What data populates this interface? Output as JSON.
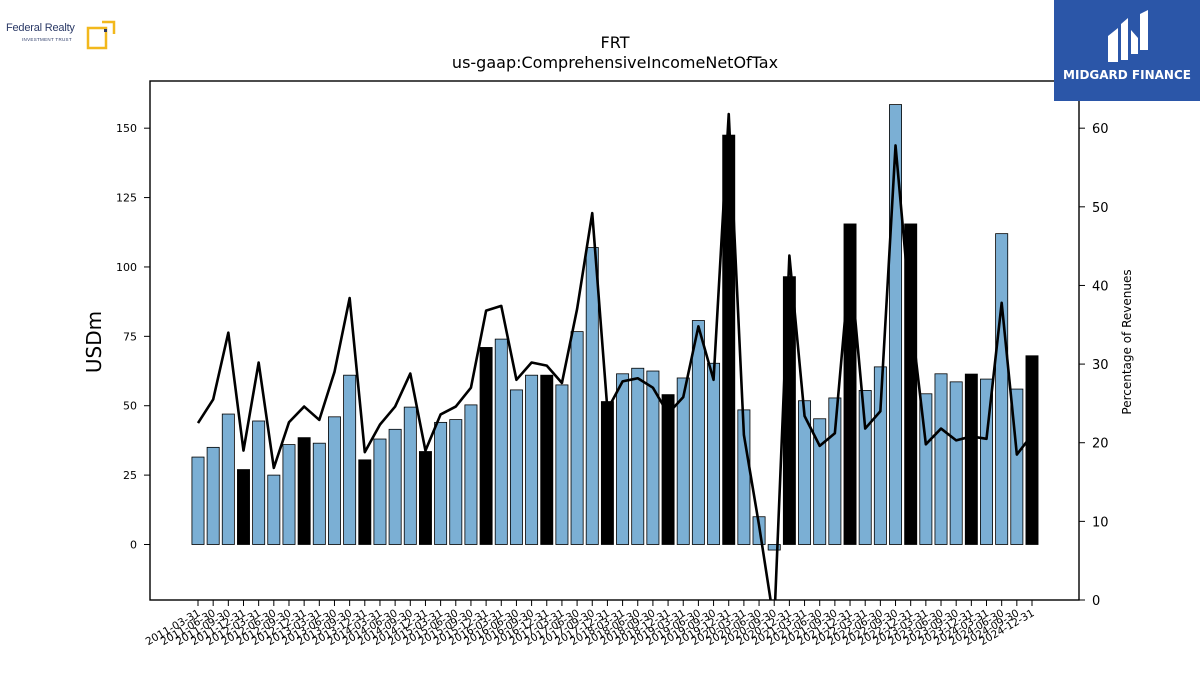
{
  "header": {
    "left_logo_text": "Federal Realty",
    "left_logo_sub": "INVESTMENT TRUST",
    "right_logo_text": "MIDGARD FINANCE"
  },
  "colors": {
    "bar_blue": "#7bafd4",
    "bar_black": "#000000",
    "line": "#000000",
    "brand_right_bg": "#2b56a8",
    "brand_left_accent": "#f2b81c"
  },
  "chart_data": {
    "type": "bar",
    "title": "FRT",
    "subtitle": "us-gaap:ComprehensiveIncomeNetOfTax",
    "ylabel": "USDm",
    "y2label": "Percentage of Revenues",
    "ylim": [
      -20,
      167
    ],
    "y2lim": [
      0,
      66
    ],
    "yticks": [
      0,
      25,
      50,
      75,
      100,
      125,
      150
    ],
    "y2ticks": [
      0,
      10,
      20,
      30,
      40,
      50,
      60
    ],
    "categories": [
      "2011-03-31",
      "2011-06-30",
      "2011-09-30",
      "2011-12-31",
      "2012-03-31",
      "2012-06-30",
      "2012-09-30",
      "2012-12-31",
      "2013-03-31",
      "2013-06-30",
      "2013-09-30",
      "2013-12-31",
      "2014-03-31",
      "2014-06-30",
      "2014-09-30",
      "2014-12-31",
      "2015-03-31",
      "2015-06-30",
      "2015-09-30",
      "2015-12-31",
      "2016-03-31",
      "2016-06-30",
      "2016-09-30",
      "2016-12-31",
      "2017-03-31",
      "2017-06-30",
      "2017-09-30",
      "2017-12-31",
      "2018-03-31",
      "2018-06-30",
      "2018-09-30",
      "2018-12-31",
      "2019-03-31",
      "2019-06-30",
      "2019-09-30",
      "2019-12-31",
      "2020-03-31",
      "2020-06-30",
      "2020-09-30",
      "2020-12-31",
      "2021-03-31",
      "2021-06-30",
      "2021-09-30",
      "2021-12-31",
      "2022-03-31",
      "2022-06-30",
      "2022-09-30",
      "2022-12-31",
      "2023-03-31",
      "2023-06-30",
      "2023-09-30",
      "2023-12-31",
      "2024-03-31",
      "2024-06-30",
      "2024-09-30",
      "2024-12-31"
    ],
    "xtick_labels": [
      "2011-03-31",
      "2011-06-30",
      "2011-09-30",
      "2011-12-31",
      "2012-03-31",
      "2012-06-30",
      "2012-09-30",
      "2012-12-31",
      "2013-03-31",
      "2013-06-30",
      "2013-09-30",
      "2013-12-31",
      "2014-03-31",
      "2014-06-30",
      "2014-09-30",
      "2014-12-31",
      "2015-03-31",
      "2015-06-30",
      "2015-09-30",
      "2015-12-31",
      "2016-03-31",
      "2016-06-30",
      "2016-09-30",
      "2016-12-31",
      "2017-03-31",
      "2017-06-30",
      "2017-09-30",
      "2017-12-31",
      "2018-03-31",
      "2018-06-30",
      "2018-09-30",
      "2018-12-31",
      "2019-03-31",
      "2019-06-30",
      "2019-09-30",
      "2019-12-31",
      "2020-03-31",
      "2020-06-30",
      "2020-09-30",
      "2020-12-31",
      "2021-03-31",
      "2021-06-30",
      "2021-09-30",
      "2021-12-31",
      "2022-03-31",
      "2022-06-30",
      "2022-09-30",
      "2022-12-31",
      "2023-03-31",
      "2023-06-30",
      "2023-09-30",
      "2023-12-31",
      "2024-03-31",
      "2024-06-30",
      "2024-09-30",
      "2024-12-31"
    ],
    "values": [
      31.5,
      35,
      47,
      27,
      44.5,
      25,
      36,
      38.5,
      36.5,
      46,
      61,
      30.5,
      38,
      41.5,
      49.5,
      33.5,
      44,
      45,
      50.3,
      71,
      74,
      55.7,
      61,
      61,
      57.5,
      76.7,
      107,
      51.5,
      61.5,
      63.5,
      62.5,
      54,
      60,
      80.7,
      65.3,
      147.5,
      48.5,
      10,
      -2,
      96.5,
      51.8,
      45.3,
      52.8,
      115.5,
      55.5,
      64,
      158.5,
      115.5,
      54.3,
      61.5,
      58.6,
      61.4,
      59.6,
      112,
      56,
      68
    ],
    "bar_highlight": [
      false,
      false,
      false,
      true,
      false,
      false,
      false,
      true,
      false,
      false,
      false,
      true,
      false,
      false,
      false,
      true,
      false,
      false,
      false,
      true,
      false,
      false,
      false,
      true,
      false,
      false,
      false,
      true,
      false,
      false,
      false,
      true,
      false,
      false,
      false,
      true,
      false,
      false,
      false,
      true,
      false,
      false,
      false,
      true,
      false,
      false,
      false,
      true,
      false,
      false,
      false,
      true,
      false,
      false,
      false,
      true
    ],
    "line_values": [
      22.5,
      25.5,
      34,
      19,
      30.2,
      16.8,
      22.6,
      24.6,
      22.9,
      29,
      38.4,
      18.8,
      22.3,
      24.6,
      28.8,
      19,
      23.6,
      24.6,
      27,
      36.8,
      37.4,
      28,
      30.2,
      29.8,
      27.6,
      37,
      49.2,
      24.2,
      27.8,
      28.2,
      27,
      23.7,
      25.8,
      34.8,
      28,
      61.8,
      21,
      9.5,
      -3,
      43.8,
      23.4,
      19.6,
      21.2,
      43,
      21.8,
      24,
      57.8,
      36.3,
      19.8,
      21.8,
      20.3,
      20.8,
      20.5,
      37.8,
      18.5,
      21
    ]
  }
}
